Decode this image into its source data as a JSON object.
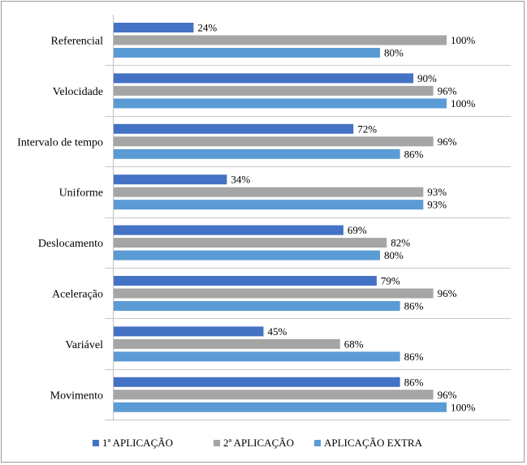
{
  "chart_data": {
    "type": "bar",
    "orientation": "horizontal",
    "categories": [
      "Referencial",
      "Velocidade",
      "Intervalo de tempo",
      "Uniforme",
      "Deslocamento",
      "Aceleração",
      "Variável",
      "Movimento"
    ],
    "series": [
      {
        "name": "1ª APLICAÇÃO",
        "color": "#4472c4",
        "values": [
          24,
          90,
          72,
          34,
          69,
          79,
          45,
          86
        ]
      },
      {
        "name": "2ª APLICAÇÃO",
        "color": "#a5a5a5",
        "values": [
          100,
          96,
          96,
          93,
          82,
          96,
          68,
          96
        ]
      },
      {
        "name": "APLICAÇÃO EXTRA",
        "color": "#5b9bd5",
        "values": [
          80,
          100,
          86,
          93,
          80,
          86,
          86,
          100
        ]
      }
    ],
    "value_suffix": "%",
    "xlim": [
      0,
      100
    ],
    "grid": "horizontal separators between categories",
    "legend_position": "bottom"
  }
}
